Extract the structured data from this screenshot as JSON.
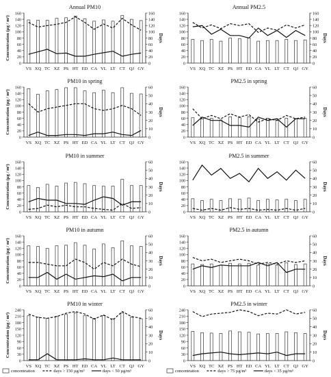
{
  "figure": {
    "legends": [
      {
        "items": [
          {
            "label": "concentration",
            "style": "bar"
          },
          {
            "label": "days > 150 µg/m³",
            "style": "dashed"
          },
          {
            "label": "days < 50 µg/m³",
            "style": "solid"
          }
        ]
      },
      {
        "items": [
          {
            "label": "concentration",
            "style": "bar"
          },
          {
            "label": "days > 75 µg/m³",
            "style": "dashed"
          },
          {
            "label": "days < 35 µg/m³",
            "style": "solid"
          }
        ]
      }
    ]
  },
  "chart_data": [
    {
      "type": "bar",
      "title": "Annual PM10",
      "ylabel": "Concentration (µg / m³)",
      "y2label": "Days",
      "ylim": [
        0,
        160
      ],
      "y2lim": [
        0,
        160
      ],
      "yticks": [
        0,
        20,
        40,
        60,
        80,
        100,
        120,
        140,
        160
      ],
      "y2ticks": [
        0,
        20,
        40,
        60,
        80,
        100,
        120,
        140,
        160
      ],
      "categories": [
        "VS",
        "XQ",
        "TC",
        "XZ",
        "PS",
        "HT",
        "ED",
        "CA",
        "YL",
        "LT",
        "CT",
        "QJ",
        "GY"
      ],
      "series": [
        {
          "name": "concentration",
          "kind": "bar",
          "axis": "left",
          "values": [
            138,
            137,
            137,
            143,
            145,
            150,
            142,
            134,
            138,
            134,
            152,
            140,
            136
          ]
        },
        {
          "name": "days > 150 µg/m³",
          "kind": "dashed",
          "axis": "right",
          "values": [
            130,
            115,
            120,
            124,
            130,
            148,
            130,
            108,
            125,
            112,
            143,
            122,
            105
          ]
        },
        {
          "name": "days < 50 µg/m³",
          "kind": "solid",
          "axis": "right",
          "values": [
            28,
            36,
            44,
            30,
            32,
            22,
            22,
            28,
            33,
            38,
            22,
            28,
            32
          ]
        }
      ]
    },
    {
      "type": "bar",
      "title": "Annual PM2.5",
      "ylabel": "",
      "y2label": "Days",
      "ylim": [
        0,
        160
      ],
      "y2lim": [
        0,
        160
      ],
      "yticks": [
        0,
        20,
        40,
        60,
        80,
        100,
        120,
        140,
        160
      ],
      "y2ticks": [
        0,
        20,
        40,
        60,
        80,
        100,
        120,
        140,
        160
      ],
      "categories": [
        "VS",
        "XQ",
        "TC",
        "XZ",
        "PS",
        "HT",
        "ED",
        "CA",
        "YL",
        "LT",
        "CT",
        "QJ",
        "GY"
      ],
      "series": [
        {
          "name": "concentration",
          "kind": "bar",
          "axis": "left",
          "values": [
            76,
            72,
            76,
            70,
            80,
            78,
            80,
            70,
            72,
            72,
            76,
            72,
            74
          ]
        },
        {
          "name": "days > 75 µg/m³",
          "kind": "dashed",
          "axis": "right",
          "values": [
            130,
            112,
            122,
            110,
            126,
            120,
            126,
            98,
            112,
            105,
            122,
            112,
            122
          ]
        },
        {
          "name": "days < 35 µg/m³",
          "kind": "solid",
          "axis": "right",
          "values": [
            116,
            120,
            92,
            108,
            88,
            88,
            80,
            112,
            88,
            104,
            82,
            104,
            88
          ]
        }
      ]
    },
    {
      "type": "bar",
      "title": "PM10 in spring",
      "ylabel": "Concentration (µg / m³)",
      "y2label": "Days",
      "ylim": [
        0,
        160
      ],
      "y2lim": [
        0,
        60
      ],
      "yticks": [
        0,
        20,
        40,
        60,
        80,
        100,
        120,
        140,
        160
      ],
      "y2ticks": [
        0,
        10,
        20,
        30,
        40,
        50,
        60
      ],
      "categories": [
        "VS",
        "XQ",
        "TC",
        "XZ",
        "PS",
        "HT",
        "ED",
        "CA",
        "YL",
        "LT",
        "CT",
        "QJ",
        "GY"
      ],
      "series": [
        {
          "name": "concentration",
          "kind": "bar",
          "axis": "left",
          "values": [
            155,
            137,
            148,
            152,
            158,
            158,
            148,
            142,
            150,
            142,
            158,
            140,
            138
          ]
        },
        {
          "name": "days > 150 µg/m³",
          "kind": "dashed",
          "axis": "right",
          "values": [
            40,
            30,
            34,
            36,
            38,
            40,
            40,
            34,
            32,
            34,
            38,
            34,
            26
          ]
        },
        {
          "name": "days < 50 µg/m³",
          "kind": "solid",
          "axis": "right",
          "values": [
            2,
            6,
            2,
            2,
            3,
            3,
            2,
            4,
            4,
            6,
            3,
            2,
            8
          ]
        }
      ]
    },
    {
      "type": "bar",
      "title": "PM2.5 in spring",
      "ylabel": "",
      "y2label": "Days",
      "ylim": [
        0,
        160
      ],
      "y2lim": [
        0,
        60
      ],
      "yticks": [
        0,
        20,
        40,
        60,
        80,
        100,
        120,
        140,
        160
      ],
      "y2ticks": [
        0,
        10,
        20,
        30,
        40,
        50,
        60
      ],
      "categories": [
        "VS",
        "XQ",
        "TC",
        "XZ",
        "PS",
        "HT",
        "ED",
        "CA",
        "YL",
        "LT",
        "CT",
        "QJ",
        "GY"
      ],
      "series": [
        {
          "name": "concentration",
          "kind": "bar",
          "axis": "left",
          "values": [
            62,
            58,
            60,
            55,
            65,
            62,
            65,
            58,
            60,
            58,
            60,
            58,
            60
          ]
        },
        {
          "name": "days > 75 µg/m³",
          "kind": "dashed",
          "axis": "right",
          "values": [
            34,
            22,
            26,
            22,
            28,
            24,
            27,
            18,
            22,
            20,
            26,
            22,
            24
          ]
        },
        {
          "name": "days < 35 µg/m³",
          "kind": "solid",
          "axis": "right",
          "values": [
            14,
            24,
            20,
            20,
            14,
            14,
            12,
            24,
            20,
            22,
            12,
            22,
            22
          ]
        }
      ]
    },
    {
      "type": "bar",
      "title": "PM10 in summer",
      "ylabel": "Concentration (µg / m³)",
      "y2label": "Days",
      "ylim": [
        0,
        160
      ],
      "y2lim": [
        0,
        60
      ],
      "yticks": [
        0,
        20,
        40,
        60,
        80,
        100,
        120,
        140,
        160
      ],
      "y2ticks": [
        0,
        10,
        20,
        30,
        40,
        50,
        60
      ],
      "categories": [
        "VS",
        "XQ",
        "TC",
        "XZ",
        "PS",
        "HT",
        "ED",
        "CA",
        "YL",
        "LT",
        "CT",
        "QJ",
        "GY"
      ],
      "series": [
        {
          "name": "concentration",
          "kind": "bar",
          "axis": "left",
          "values": [
            84,
            78,
            88,
            82,
            92,
            94,
            90,
            84,
            82,
            82,
            104,
            84,
            84
          ]
        },
        {
          "name": "days > 150 µg/m³",
          "kind": "dashed",
          "axis": "right",
          "values": [
            3,
            4,
            8,
            6,
            8,
            6,
            6,
            4,
            3,
            2,
            10,
            4,
            5
          ]
        },
        {
          "name": "days < 50 µg/m³",
          "kind": "solid",
          "axis": "right",
          "values": [
            12,
            16,
            14,
            14,
            10,
            10,
            9,
            14,
            18,
            16,
            8,
            12,
            12
          ]
        }
      ]
    },
    {
      "type": "bar",
      "title": "PM2.5 in summer",
      "ylabel": "",
      "y2label": "Days",
      "ylim": [
        0,
        160
      ],
      "y2lim": [
        0,
        60
      ],
      "yticks": [
        0,
        20,
        40,
        60,
        80,
        100,
        120,
        140,
        160
      ],
      "y2ticks": [
        0,
        10,
        20,
        30,
        40,
        50,
        60
      ],
      "categories": [
        "VS",
        "XQ",
        "TC",
        "XZ",
        "PS",
        "HT",
        "ED",
        "CA",
        "YL",
        "LT",
        "CT",
        "QJ",
        "GY"
      ],
      "series": [
        {
          "name": "concentration",
          "kind": "bar",
          "axis": "left",
          "values": [
            42,
            36,
            40,
            36,
            42,
            40,
            44,
            36,
            40,
            38,
            40,
            36,
            40
          ]
        },
        {
          "name": "days > 75 µg/m³",
          "kind": "dashed",
          "axis": "right",
          "values": [
            4,
            2,
            4,
            2,
            5,
            3,
            4,
            2,
            3,
            2,
            4,
            2,
            4
          ]
        },
        {
          "name": "days < 35 µg/m³",
          "kind": "solid",
          "axis": "right",
          "values": [
            38,
            56,
            44,
            52,
            40,
            46,
            36,
            52,
            40,
            48,
            38,
            50,
            40
          ]
        }
      ]
    },
    {
      "type": "bar",
      "title": "PM10 in autumn",
      "ylabel": "Concentration (µg / m³)",
      "y2label": "Days",
      "ylim": [
        0,
        160
      ],
      "y2lim": [
        0,
        60
      ],
      "yticks": [
        0,
        20,
        40,
        60,
        80,
        100,
        120,
        140,
        160
      ],
      "y2ticks": [
        0,
        10,
        20,
        30,
        40,
        50,
        60
      ],
      "categories": [
        "VS",
        "XQ",
        "TC",
        "XZ",
        "PS",
        "HT",
        "ED",
        "CA",
        "YL",
        "LT",
        "CT",
        "QJ",
        "GY"
      ],
      "series": [
        {
          "name": "concentration",
          "kind": "bar",
          "axis": "left",
          "values": [
            128,
            126,
            120,
            128,
            130,
            138,
            130,
            118,
            134,
            122,
            144,
            128,
            126
          ]
        },
        {
          "name": "days > 150 µg/m³",
          "kind": "dashed",
          "axis": "right",
          "values": [
            28,
            28,
            26,
            24,
            24,
            32,
            28,
            20,
            28,
            24,
            32,
            26,
            23
          ]
        },
        {
          "name": "days < 50 µg/m³",
          "kind": "solid",
          "axis": "right",
          "values": [
            10,
            10,
            16,
            8,
            14,
            8,
            10,
            12,
            11,
            14,
            6,
            10,
            10
          ]
        }
      ]
    },
    {
      "type": "bar",
      "title": "PM2.5 in autumn",
      "ylabel": "",
      "y2label": "Days",
      "ylim": [
        0,
        160
      ],
      "y2lim": [
        0,
        60
      ],
      "yticks": [
        0,
        20,
        40,
        60,
        80,
        100,
        120,
        140,
        160
      ],
      "y2ticks": [
        0,
        10,
        20,
        30,
        40,
        50,
        60
      ],
      "categories": [
        "VS",
        "XQ",
        "TC",
        "XZ",
        "PS",
        "HT",
        "ED",
        "CA",
        "YL",
        "LT",
        "CT",
        "QJ",
        "GY"
      ],
      "series": [
        {
          "name": "concentration",
          "kind": "bar",
          "axis": "left",
          "values": [
            70,
            68,
            70,
            66,
            72,
            70,
            72,
            66,
            70,
            66,
            74,
            68,
            70
          ]
        },
        {
          "name": "days > 75 µg/m³",
          "kind": "dashed",
          "axis": "right",
          "values": [
            34,
            30,
            32,
            28,
            30,
            32,
            30,
            26,
            28,
            26,
            30,
            28,
            30
          ]
        },
        {
          "name": "days < 35 µg/m³",
          "kind": "solid",
          "axis": "right",
          "values": [
            20,
            24,
            22,
            25,
            24,
            24,
            24,
            28,
            24,
            28,
            16,
            20,
            20
          ]
        }
      ]
    },
    {
      "type": "bar",
      "title": "PM10 in winter",
      "ylabel": "Concentration (µg / m³)",
      "y2label": "Days",
      "ylim": [
        0,
        240
      ],
      "y2lim": [
        0,
        60
      ],
      "yticks": [
        0,
        30,
        60,
        90,
        120,
        150,
        180,
        210,
        240
      ],
      "y2ticks": [
        0,
        10,
        20,
        30,
        40,
        50,
        60
      ],
      "categories": [
        "VS",
        "XQ",
        "TC",
        "XZ",
        "PS",
        "HT",
        "ED",
        "CA",
        "YL",
        "LT",
        "CT",
        "QJ",
        "GY"
      ],
      "series": [
        {
          "name": "concentration",
          "kind": "bar",
          "axis": "left",
          "values": [
            212,
            205,
            200,
            210,
            218,
            226,
            212,
            200,
            212,
            198,
            225,
            205,
            198
          ]
        },
        {
          "name": "days > 150 µg/m³",
          "kind": "dashed",
          "axis": "right",
          "values": [
            55,
            51,
            50,
            52,
            56,
            58,
            55,
            49,
            54,
            48,
            58,
            52,
            50
          ]
        },
        {
          "name": "days < 50 µg/m³",
          "kind": "solid",
          "axis": "right",
          "values": [
            1,
            1,
            8,
            1,
            1,
            1,
            2,
            1,
            1,
            3,
            1,
            1,
            1
          ]
        }
      ]
    },
    {
      "type": "bar",
      "title": "PM2.5 in winter",
      "ylabel": "",
      "y2label": "Days",
      "ylim": [
        0,
        240
      ],
      "y2lim": [
        0,
        60
      ],
      "yticks": [
        0,
        30,
        60,
        90,
        120,
        150,
        180,
        210,
        240
      ],
      "y2ticks": [
        0,
        10,
        20,
        30,
        40,
        50,
        60
      ],
      "categories": [
        "VS",
        "XQ",
        "TC",
        "XZ",
        "PS",
        "HT",
        "ED",
        "CA",
        "YL",
        "LT",
        "CT",
        "QJ",
        "GY"
      ],
      "series": [
        {
          "name": "concentration",
          "kind": "bar",
          "axis": "left",
          "values": [
            138,
            132,
            130,
            128,
            140,
            136,
            134,
            126,
            128,
            128,
            136,
            132,
            128
          ]
        },
        {
          "name": "days > 75 µg/m³",
          "kind": "dashed",
          "axis": "right",
          "values": [
            58,
            52,
            55,
            56,
            57,
            60,
            58,
            53,
            56,
            55,
            60,
            55,
            57
          ]
        },
        {
          "name": "days < 35 µg/m³",
          "kind": "solid",
          "axis": "right",
          "values": [
            6,
            8,
            9,
            10,
            8,
            7,
            8,
            9,
            8,
            10,
            6,
            8,
            8
          ]
        }
      ]
    }
  ]
}
